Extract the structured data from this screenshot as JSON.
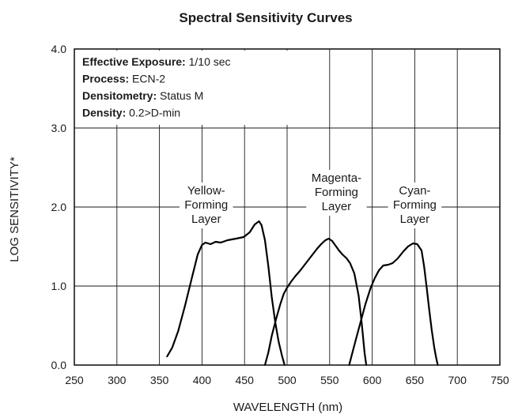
{
  "chart_data": {
    "type": "line",
    "title": "Spectral Sensitivity Curves",
    "xlabel": "WAVELENGTH (nm)",
    "ylabel": "LOG SENSITIVITY*",
    "xlim": [
      250,
      750
    ],
    "ylim": [
      0,
      4
    ],
    "x_ticks": [
      250,
      300,
      350,
      400,
      450,
      500,
      550,
      600,
      650,
      700,
      750
    ],
    "y_ticks": [
      0,
      1,
      2,
      3,
      4
    ],
    "x_tick_labels": [
      "250",
      "300",
      "350",
      "400",
      "450",
      "500",
      "550",
      "600",
      "650",
      "700",
      "750"
    ],
    "y_tick_labels": [
      "0.0",
      "1.0",
      "2.0",
      "3.0",
      "4.0"
    ],
    "grid": true,
    "info_box": [
      {
        "label": "Effective Exposure:",
        "value": " 1/10 sec"
      },
      {
        "label": "Process:",
        "value": " ECN-2"
      },
      {
        "label": "Densitometry:",
        "value": " Status M"
      },
      {
        "label": "Density:",
        "value": " 0.2>D-min"
      }
    ],
    "series": [
      {
        "label_lines": [
          "Yellow-",
          "Forming",
          "Layer"
        ],
        "label_at": [
          405,
          2.16
        ],
        "x": [
          359,
          365,
          372,
          380,
          388,
          395,
          400,
          404,
          410,
          416,
          422,
          430,
          440,
          449,
          456,
          462,
          467,
          470,
          474,
          478,
          482,
          486,
          490,
          494,
          497
        ],
        "y": [
          0.11,
          0.22,
          0.43,
          0.75,
          1.1,
          1.4,
          1.52,
          1.55,
          1.53,
          1.56,
          1.55,
          1.58,
          1.6,
          1.62,
          1.68,
          1.78,
          1.82,
          1.77,
          1.58,
          1.25,
          0.86,
          0.55,
          0.3,
          0.12,
          0.0
        ]
      },
      {
        "label_lines": [
          "Magenta-",
          "Forming",
          "Layer"
        ],
        "label_at": [
          558,
          2.32
        ],
        "x": [
          474,
          478,
          482,
          487,
          492,
          496,
          500,
          505,
          510,
          515,
          520,
          525,
          530,
          535,
          540,
          545,
          549,
          553,
          557,
          561,
          565,
          570,
          574,
          579,
          584,
          587,
          589,
          591,
          593
        ],
        "y": [
          0.0,
          0.16,
          0.37,
          0.58,
          0.77,
          0.9,
          0.98,
          1.06,
          1.13,
          1.19,
          1.26,
          1.33,
          1.4,
          1.47,
          1.53,
          1.58,
          1.6,
          1.57,
          1.51,
          1.45,
          1.4,
          1.35,
          1.29,
          1.16,
          0.88,
          0.6,
          0.38,
          0.16,
          0.0
        ]
      },
      {
        "label_lines": [
          "Cyan-",
          "Forming",
          "Layer"
        ],
        "label_at": [
          650,
          2.16
        ],
        "x": [
          573,
          577,
          582,
          587,
          592,
          598,
          603,
          608,
          613,
          619,
          624,
          630,
          636,
          642,
          648,
          653,
          658,
          661,
          664,
          667,
          670,
          673,
          675,
          677
        ],
        "y": [
          0.0,
          0.17,
          0.37,
          0.57,
          0.77,
          0.97,
          1.1,
          1.2,
          1.26,
          1.27,
          1.29,
          1.35,
          1.43,
          1.5,
          1.54,
          1.53,
          1.45,
          1.25,
          0.98,
          0.7,
          0.44,
          0.22,
          0.1,
          0.0
        ]
      }
    ]
  }
}
